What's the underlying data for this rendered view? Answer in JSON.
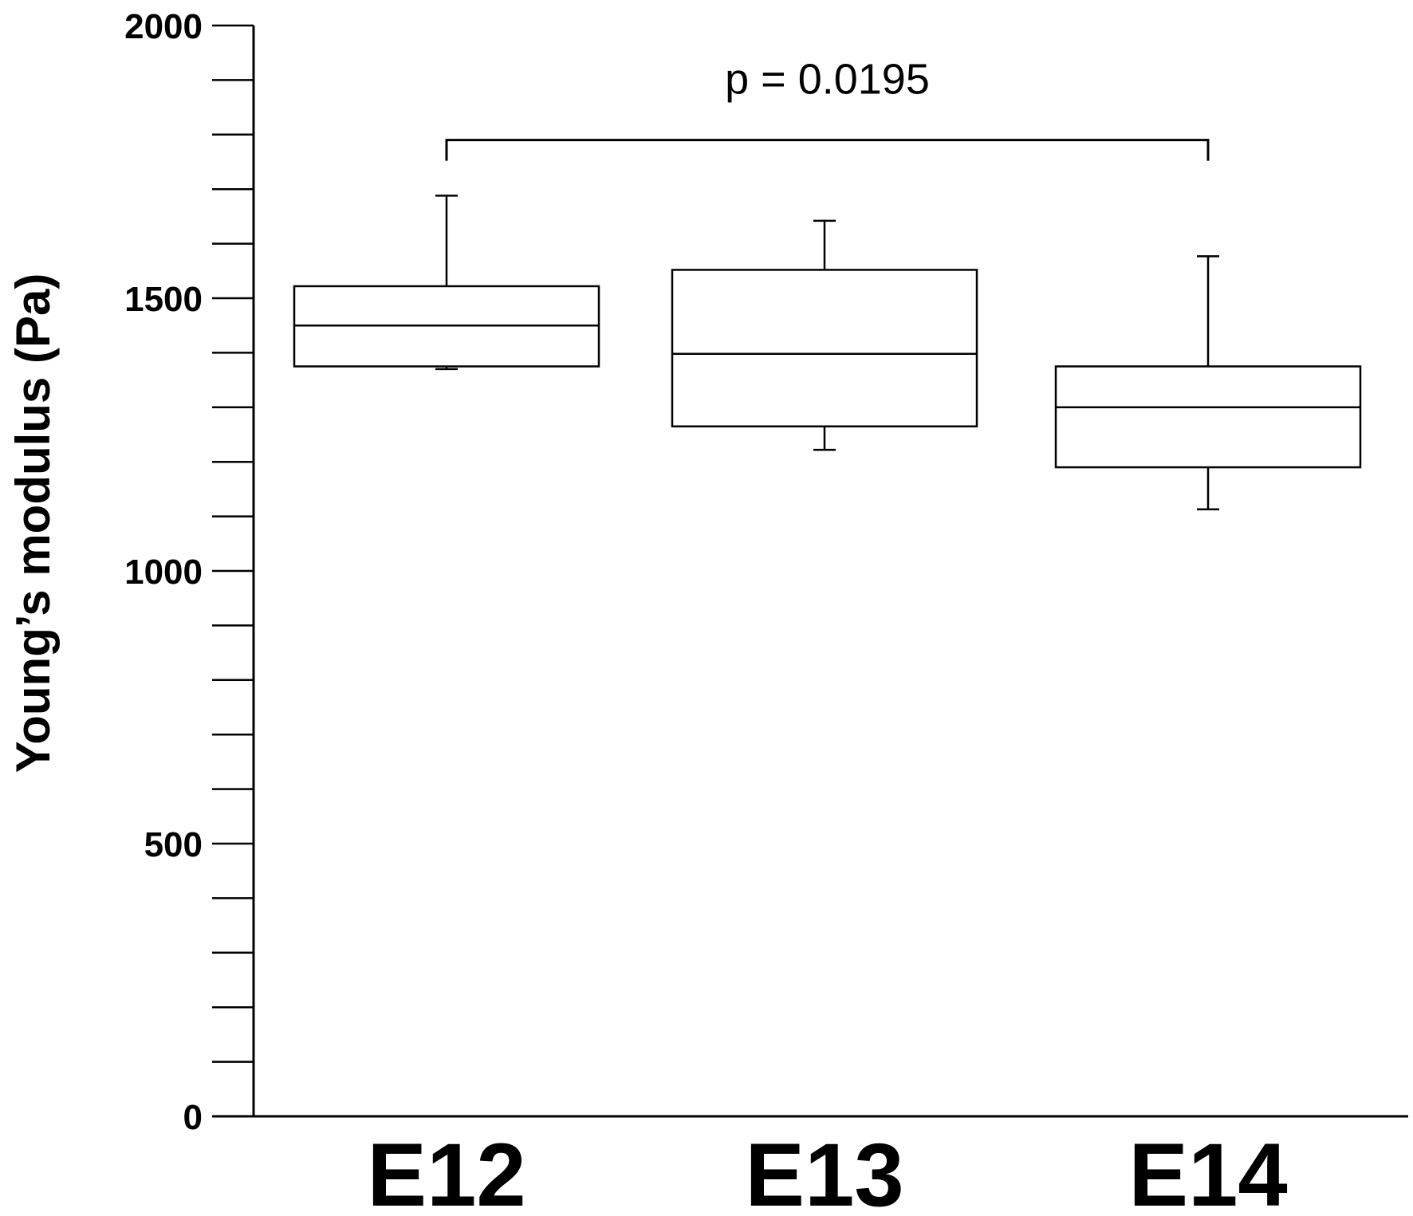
{
  "chart_data": {
    "type": "box",
    "categories": [
      "E12",
      "E13",
      "E14"
    ],
    "boxes": [
      {
        "category": "E12",
        "whisker_low": 1370,
        "q1": 1375,
        "median": 1450,
        "q3": 1522,
        "whisker_high": 1688
      },
      {
        "category": "E13",
        "whisker_low": 1222,
        "q1": 1265,
        "median": 1398,
        "q3": 1552,
        "whisker_high": 1642
      },
      {
        "category": "E14",
        "whisker_low": 1113,
        "q1": 1190,
        "median": 1300,
        "q3": 1375,
        "whisker_high": 1577
      }
    ],
    "ylabel": "Young’s modulus (Pa)",
    "xlabel": "",
    "ylim": [
      0,
      2000
    ],
    "yticks_major": [
      0,
      500,
      1000,
      1500,
      2000
    ],
    "yticks_minor_step": 100,
    "grid": false,
    "annotation": {
      "text": "p = 0.0195",
      "from": "E12",
      "to": "E14",
      "bracket_value": 1790
    },
    "colors": {
      "stroke": "#000000",
      "fill": "#ffffff"
    }
  }
}
